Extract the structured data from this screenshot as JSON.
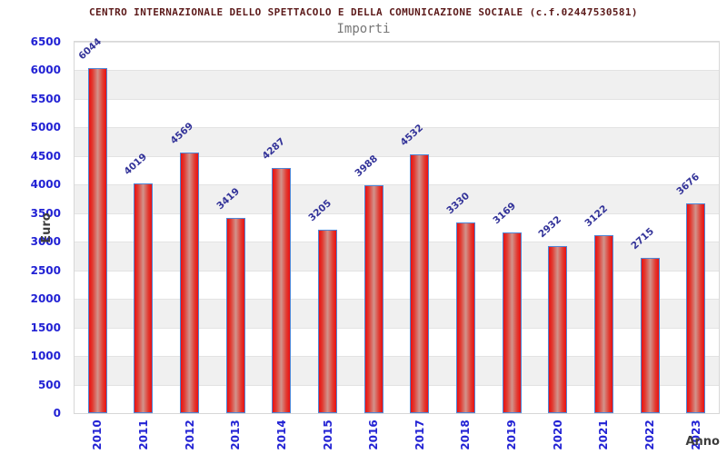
{
  "chart_data": {
    "type": "bar",
    "title": "CENTRO INTERNAZIONALE DELLO SPETTACOLO E DELLA COMUNICAZIONE SOCIALE (c.f.02447530581)",
    "subtitle": "Importi",
    "xlabel": "Anno",
    "ylabel": "Euro",
    "categories": [
      "2010",
      "2011",
      "2012",
      "2013",
      "2014",
      "2015",
      "2016",
      "2017",
      "2018",
      "2019",
      "2020",
      "2021",
      "2022",
      "2023"
    ],
    "values": [
      6044,
      4019,
      4569,
      3419,
      4287,
      3205,
      3988,
      4532,
      3330,
      3169,
      2932,
      3122,
      2715,
      3676
    ],
    "ylim": [
      0,
      6500
    ],
    "ytick_step": 500,
    "grid": "alternating-horizontal-bands",
    "legend_position": "none",
    "colors": {
      "title_text": "#5c1a1a",
      "subtitle_text": "#777777",
      "tick_label": "#2222d4",
      "value_label": "#333399",
      "axis_title_text": "#3d3d3d",
      "bar_gradient_edge": "#ea1111",
      "bar_gradient_mid": "#e13a31",
      "bar_gradient_center": "#d1948c",
      "bar_border": "#4f86d6",
      "band_alternate": "#f0f0f0",
      "plot_border": "#d7d7d7",
      "gridline": "#e3e3e3",
      "background": "#ffffff"
    }
  }
}
